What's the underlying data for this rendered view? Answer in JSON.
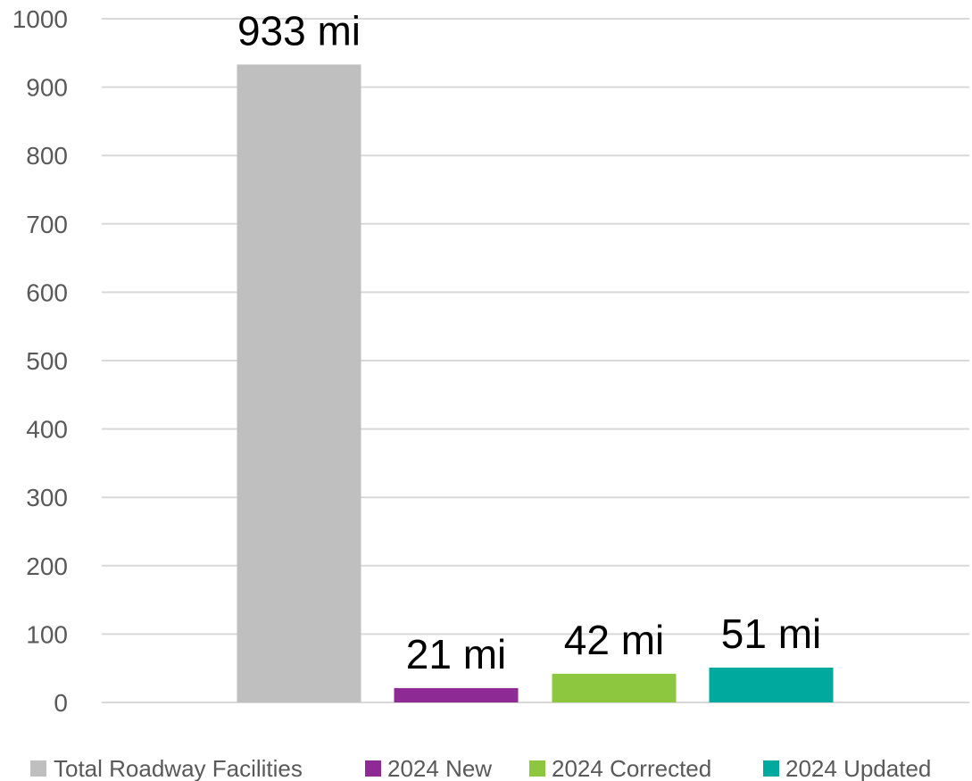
{
  "chart_data": {
    "type": "bar",
    "title": "",
    "xlabel": "",
    "ylabel": "",
    "ylim": [
      0,
      1000
    ],
    "yticks": [
      0,
      100,
      200,
      300,
      400,
      500,
      600,
      700,
      800,
      900,
      1000
    ],
    "grid": true,
    "legend_position": "bottom",
    "series": [
      {
        "name": "Total Roadway Facilities",
        "value": 933,
        "label": "933 mi",
        "color": "#bfbfbf"
      },
      {
        "name": "2024 New",
        "value": 21,
        "label": "21 mi",
        "color": "#8e2a93"
      },
      {
        "name": "2024 Corrected",
        "value": 42,
        "label": "42 mi",
        "color": "#8dc63f"
      },
      {
        "name": "2024 Updated",
        "value": 51,
        "label": "51 mi",
        "color": "#00a99d"
      }
    ]
  }
}
